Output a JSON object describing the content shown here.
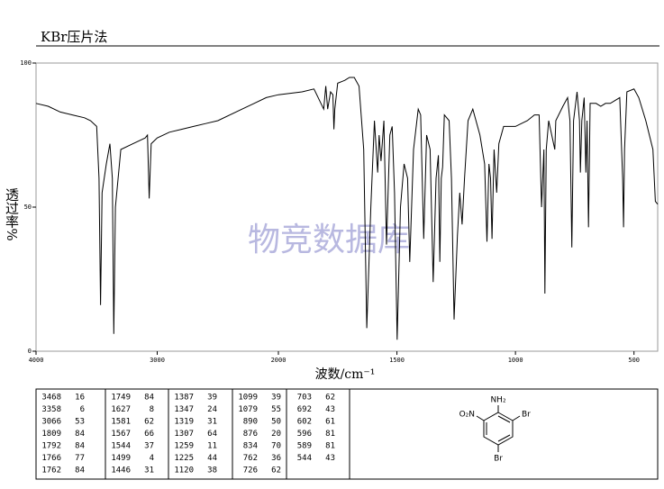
{
  "chart_data": {
    "type": "line",
    "title": "KBr压片法",
    "xlabel": "波数/cm⁻¹",
    "ylabel": "透过率%",
    "watermark": "物竞数据库",
    "xlim": [
      4000,
      400
    ],
    "x_scale_change": 2000,
    "xticks": [
      4000,
      3000,
      2000,
      1500,
      1000,
      500
    ],
    "ylim": [
      0,
      100
    ],
    "yticks": [
      0,
      50,
      100
    ],
    "x": [
      4000,
      3900,
      3800,
      3700,
      3600,
      3550,
      3500,
      3480,
      3468,
      3455,
      3420,
      3390,
      3370,
      3358,
      3345,
      3300,
      3200,
      3100,
      3080,
      3066,
      3050,
      3000,
      2900,
      2800,
      2700,
      2600,
      2500,
      2400,
      2300,
      2200,
      2100,
      2000,
      1900,
      1850,
      1809,
      1800,
      1792,
      1780,
      1770,
      1766,
      1762,
      1750,
      1720,
      1700,
      1680,
      1660,
      1640,
      1627,
      1610,
      1595,
      1581,
      1575,
      1567,
      1555,
      1544,
      1530,
      1520,
      1510,
      1499,
      1485,
      1470,
      1455,
      1446,
      1430,
      1410,
      1400,
      1387,
      1375,
      1360,
      1347,
      1335,
      1325,
      1319,
      1313,
      1307,
      1300,
      1280,
      1270,
      1259,
      1245,
      1235,
      1225,
      1215,
      1200,
      1180,
      1150,
      1130,
      1120,
      1112,
      1105,
      1099,
      1090,
      1079,
      1070,
      1050,
      1000,
      950,
      920,
      900,
      890,
      880,
      876,
      870,
      860,
      834,
      830,
      800,
      780,
      770,
      762,
      755,
      740,
      730,
      726,
      720,
      710,
      703,
      698,
      692,
      685,
      660,
      640,
      620,
      600,
      560,
      548,
      544,
      540,
      530,
      500,
      480,
      450,
      420,
      410,
      400
    ],
    "series": [
      {
        "color": "#000000",
        "values": [
          86,
          85,
          83,
          82,
          81,
          80,
          78,
          60,
          16,
          55,
          65,
          72,
          60,
          6,
          50,
          70,
          72,
          74,
          75,
          53,
          72,
          74,
          76,
          77,
          78,
          79,
          80,
          82,
          84,
          86,
          88,
          89,
          90,
          91,
          84,
          92,
          84,
          90,
          89,
          77,
          84,
          93,
          94,
          95,
          95,
          92,
          70,
          8,
          50,
          80,
          62,
          75,
          66,
          80,
          37,
          75,
          78,
          55,
          4,
          50,
          65,
          60,
          31,
          70,
          84,
          82,
          39,
          75,
          70,
          24,
          60,
          68,
          31,
          60,
          64,
          82,
          80,
          60,
          11,
          40,
          55,
          44,
          60,
          80,
          84,
          75,
          65,
          38,
          65,
          60,
          39,
          70,
          55,
          72,
          78,
          78,
          80,
          82,
          82,
          50,
          70,
          20,
          70,
          80,
          70,
          80,
          85,
          88,
          80,
          36,
          80,
          90,
          80,
          62,
          80,
          88,
          62,
          80,
          43,
          86,
          86,
          85,
          86,
          86,
          88,
          60,
          43,
          70,
          90,
          91,
          88,
          80,
          70,
          52,
          51
        ]
      }
    ]
  },
  "peak_table": {
    "columns": [
      [
        [
          3468,
          16
        ],
        [
          3358,
          6
        ],
        [
          3066,
          53
        ],
        [
          1809,
          84
        ],
        [
          1792,
          84
        ],
        [
          1766,
          77
        ],
        [
          1762,
          84
        ]
      ],
      [
        [
          1749,
          84
        ],
        [
          1627,
          8
        ],
        [
          1581,
          62
        ],
        [
          1567,
          66
        ],
        [
          1544,
          37
        ],
        [
          1499,
          4
        ],
        [
          1446,
          31
        ]
      ],
      [
        [
          1387,
          39
        ],
        [
          1347,
          24
        ],
        [
          1319,
          31
        ],
        [
          1307,
          64
        ],
        [
          1259,
          11
        ],
        [
          1225,
          44
        ],
        [
          1120,
          38
        ]
      ],
      [
        [
          1099,
          39
        ],
        [
          1079,
          55
        ],
        [
          890,
          50
        ],
        [
          876,
          20
        ],
        [
          834,
          70
        ],
        [
          762,
          36
        ],
        [
          726,
          62
        ]
      ],
      [
        [
          703,
          62
        ],
        [
          692,
          43
        ],
        [
          602,
          61
        ],
        [
          596,
          81
        ],
        [
          589,
          81
        ],
        [
          544,
          43
        ]
      ]
    ]
  },
  "structure": {
    "top": "NH₂",
    "left": "O₂N",
    "right": "Br",
    "bottom": "Br"
  }
}
